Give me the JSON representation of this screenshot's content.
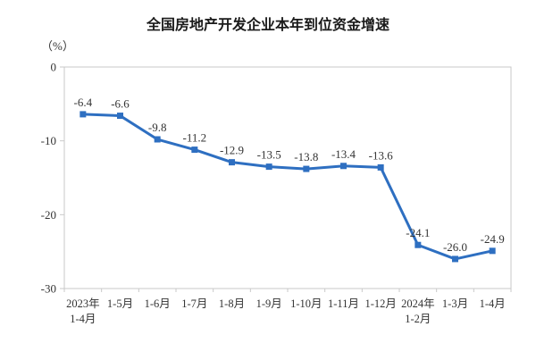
{
  "chart_data": {
    "type": "line",
    "title": "全国房地产开发企业本年到位资金增速",
    "unit_label": "（%）",
    "categories": [
      "2023年\n1-4月",
      "1-5月",
      "1-6月",
      "1-7月",
      "1-8月",
      "1-9月",
      "1-10月",
      "1-11月",
      "1-12月",
      "2024年\n1-2月",
      "1-3月",
      "1-4月"
    ],
    "values": [
      -6.4,
      -6.6,
      -9.8,
      -11.2,
      -12.9,
      -13.5,
      -13.8,
      -13.4,
      -13.6,
      -24.1,
      -26.0,
      -24.9
    ],
    "value_labels": [
      "-6.4",
      "-6.6",
      "-9.8",
      "-11.2",
      "-12.9",
      "-13.5",
      "-13.8",
      "-13.4",
      "-13.6",
      "-24.1",
      "-26.0",
      "-24.9"
    ],
    "xlabel": "",
    "ylabel": "",
    "ylim": [
      -30,
      0
    ],
    "yticks": [
      "0",
      "-10",
      "-20",
      "-30"
    ],
    "grid": "off",
    "legend": "none",
    "marker": "square",
    "colors": {
      "line": "#2e6fc1",
      "marker": "#2e6fc1",
      "axis": "#c9c9c9",
      "label": "#333333",
      "title": "#1a1a1a"
    }
  }
}
